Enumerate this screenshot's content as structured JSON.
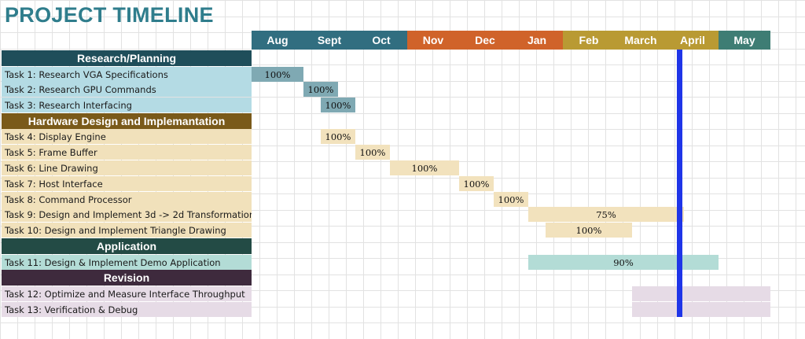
{
  "title": "PROJECT TIMELINE",
  "colors": {
    "title": "#2f7d8c",
    "today_marker": "#1f35e8",
    "research_header": "#1f4e5a",
    "research_row": "#b4dbe4",
    "research_bar": "#7fa9b3",
    "hardware_header": "#7a5a1a",
    "hardware_row": "#f1e1bb",
    "hardware_bar": "#f2e2bd",
    "application_header": "#234b45",
    "application_row": "#b3dcd6",
    "application_bar": "#b3dcd6",
    "revision_header": "#3e2a3d",
    "revision_row": "#e6dbe6",
    "revision_bar": "#e6dbe6"
  },
  "chart_data": {
    "type": "gantt",
    "title": "PROJECT TIMELINE",
    "months": [
      {
        "label": "Aug",
        "color": "#316e80"
      },
      {
        "label": "Sept",
        "color": "#316e80"
      },
      {
        "label": "Oct",
        "color": "#316e80"
      },
      {
        "label": "Nov",
        "color": "#d0632a"
      },
      {
        "label": "Dec",
        "color": "#d0632a"
      },
      {
        "label": "Jan",
        "color": "#d0632a"
      },
      {
        "label": "Feb",
        "color": "#b99a33"
      },
      {
        "label": "March",
        "color": "#b99a33"
      },
      {
        "label": "April",
        "color": "#b99a33"
      },
      {
        "label": "May",
        "color": "#3e7d74"
      }
    ],
    "today_month_index": 8.2,
    "sections": [
      {
        "name": "Research/Planning",
        "header_color": "#1f4e5a",
        "row_color": "#b4dbe4",
        "bar_color": "#7fa9b3",
        "tasks": [
          {
            "name": "Task 1: Research VGA Specifications",
            "start": 0.0,
            "end": 1.0,
            "progress": "100%"
          },
          {
            "name": "Task 2: Research GPU Commands",
            "start": 1.0,
            "end": 1.67,
            "progress": "100%"
          },
          {
            "name": "Task 3: Research Interfacing",
            "start": 1.33,
            "end": 2.0,
            "progress": "100%"
          }
        ]
      },
      {
        "name": "Hardware Design and Implemantation",
        "header_color": "#7a5a1a",
        "row_color": "#f1e1bb",
        "bar_color": "#f2e2bd",
        "tasks": [
          {
            "name": "Task 4: Display Engine",
            "start": 1.33,
            "end": 2.0,
            "progress": "100%"
          },
          {
            "name": "Task 5: Frame Buffer",
            "start": 2.0,
            "end": 2.67,
            "progress": "100%"
          },
          {
            "name": "Task 6:  Line Drawing",
            "start": 2.67,
            "end": 4.0,
            "progress": "100%"
          },
          {
            "name": "Task 7:  Host Interface",
            "start": 4.0,
            "end": 4.67,
            "progress": "100%"
          },
          {
            "name": "Task 8:  Command Processor",
            "start": 4.67,
            "end": 5.33,
            "progress": "100%"
          },
          {
            "name": "Task 9: Design and Implement 3d -> 2d Transformation",
            "start": 5.33,
            "end": 8.33,
            "progress": "75%"
          },
          {
            "name": "Task 10:  Design and Implement Triangle Drawing",
            "start": 5.67,
            "end": 7.33,
            "progress": "100%"
          }
        ]
      },
      {
        "name": "Application",
        "header_color": "#234b45",
        "row_color": "#b3dcd6",
        "bar_color": "#b3dcd6",
        "tasks": [
          {
            "name": "Task 11: Design & Implement Demo Application",
            "start": 5.33,
            "end": 9.0,
            "progress": "90%"
          }
        ]
      },
      {
        "name": "Revision",
        "header_color": "#3e2a3d",
        "row_color": "#e6dbe6",
        "bar_color": "#e6dbe6",
        "tasks": [
          {
            "name": "Task 12: Optimize and Measure Interface Throughput",
            "start": 7.33,
            "end": 10.0,
            "progress": ""
          },
          {
            "name": "Task 13: Verification & Debug",
            "start": 7.33,
            "end": 10.0,
            "progress": ""
          }
        ]
      }
    ]
  }
}
